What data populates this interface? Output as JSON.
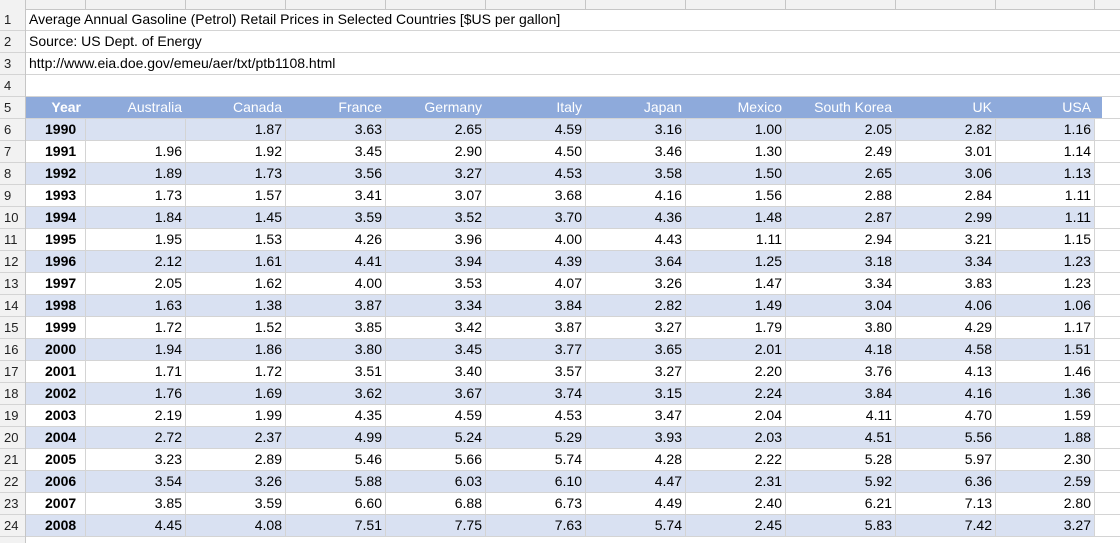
{
  "sheet": {
    "title_line": "Average Annual Gasoline (Petrol) Retail Prices in Selected Countries [$US per gallon]",
    "source_line": "Source: US Dept. of Energy",
    "url_line": "http://www.eia.doe.gov/emeu/aer/txt/ptb1108.html"
  },
  "row_numbers": [
    "1",
    "2",
    "3",
    "4",
    "5",
    "6",
    "7",
    "8",
    "9",
    "10",
    "11",
    "12",
    "13",
    "14",
    "15",
    "16",
    "17",
    "18",
    "19",
    "20",
    "21",
    "22",
    "23",
    "24"
  ],
  "table": {
    "headers": [
      "Year",
      "Australia",
      "Canada",
      "France",
      "Germany",
      "Italy",
      "Japan",
      "Mexico",
      "South Korea",
      "UK",
      "USA"
    ],
    "rows": [
      [
        "1990",
        "",
        "1.87",
        "3.63",
        "2.65",
        "4.59",
        "3.16",
        "1.00",
        "2.05",
        "2.82",
        "1.16"
      ],
      [
        "1991",
        "1.96",
        "1.92",
        "3.45",
        "2.90",
        "4.50",
        "3.46",
        "1.30",
        "2.49",
        "3.01",
        "1.14"
      ],
      [
        "1992",
        "1.89",
        "1.73",
        "3.56",
        "3.27",
        "4.53",
        "3.58",
        "1.50",
        "2.65",
        "3.06",
        "1.13"
      ],
      [
        "1993",
        "1.73",
        "1.57",
        "3.41",
        "3.07",
        "3.68",
        "4.16",
        "1.56",
        "2.88",
        "2.84",
        "1.11"
      ],
      [
        "1994",
        "1.84",
        "1.45",
        "3.59",
        "3.52",
        "3.70",
        "4.36",
        "1.48",
        "2.87",
        "2.99",
        "1.11"
      ],
      [
        "1995",
        "1.95",
        "1.53",
        "4.26",
        "3.96",
        "4.00",
        "4.43",
        "1.11",
        "2.94",
        "3.21",
        "1.15"
      ],
      [
        "1996",
        "2.12",
        "1.61",
        "4.41",
        "3.94",
        "4.39",
        "3.64",
        "1.25",
        "3.18",
        "3.34",
        "1.23"
      ],
      [
        "1997",
        "2.05",
        "1.62",
        "4.00",
        "3.53",
        "4.07",
        "3.26",
        "1.47",
        "3.34",
        "3.83",
        "1.23"
      ],
      [
        "1998",
        "1.63",
        "1.38",
        "3.87",
        "3.34",
        "3.84",
        "2.82",
        "1.49",
        "3.04",
        "4.06",
        "1.06"
      ],
      [
        "1999",
        "1.72",
        "1.52",
        "3.85",
        "3.42",
        "3.87",
        "3.27",
        "1.79",
        "3.80",
        "4.29",
        "1.17"
      ],
      [
        "2000",
        "1.94",
        "1.86",
        "3.80",
        "3.45",
        "3.77",
        "3.65",
        "2.01",
        "4.18",
        "4.58",
        "1.51"
      ],
      [
        "2001",
        "1.71",
        "1.72",
        "3.51",
        "3.40",
        "3.57",
        "3.27",
        "2.20",
        "3.76",
        "4.13",
        "1.46"
      ],
      [
        "2002",
        "1.76",
        "1.69",
        "3.62",
        "3.67",
        "3.74",
        "3.15",
        "2.24",
        "3.84",
        "4.16",
        "1.36"
      ],
      [
        "2003",
        "2.19",
        "1.99",
        "4.35",
        "4.59",
        "4.53",
        "3.47",
        "2.04",
        "4.11",
        "4.70",
        "1.59"
      ],
      [
        "2004",
        "2.72",
        "2.37",
        "4.99",
        "5.24",
        "5.29",
        "3.93",
        "2.03",
        "4.51",
        "5.56",
        "1.88"
      ],
      [
        "2005",
        "3.23",
        "2.89",
        "5.46",
        "5.66",
        "5.74",
        "4.28",
        "2.22",
        "5.28",
        "5.97",
        "2.30"
      ],
      [
        "2006",
        "3.54",
        "3.26",
        "5.88",
        "6.03",
        "6.10",
        "4.47",
        "2.31",
        "5.92",
        "6.36",
        "2.59"
      ],
      [
        "2007",
        "3.85",
        "3.59",
        "6.60",
        "6.88",
        "6.73",
        "4.49",
        "2.40",
        "6.21",
        "7.13",
        "2.80"
      ],
      [
        "2008",
        "4.45",
        "4.08",
        "7.51",
        "7.75",
        "7.63",
        "5.74",
        "2.45",
        "5.83",
        "7.42",
        "3.27"
      ]
    ]
  },
  "colors": {
    "header_fill": "#8eaadb",
    "band_fill": "#d9e1f2",
    "gridline": "#d4d4d4"
  }
}
